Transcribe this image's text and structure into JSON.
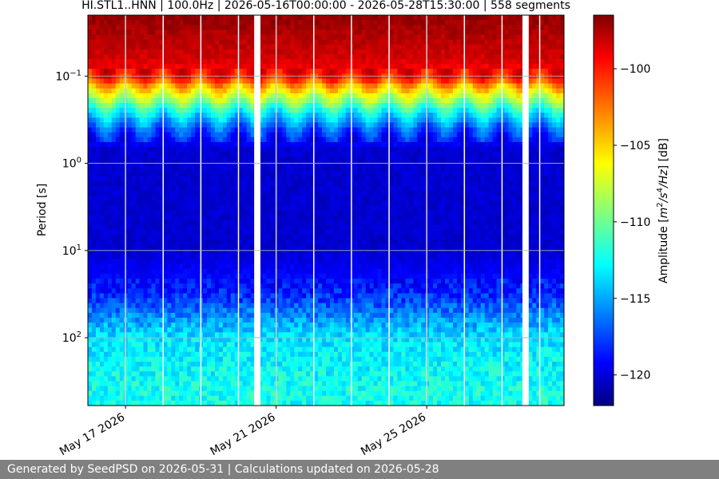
{
  "chart_data": {
    "type": "heatmap",
    "title": "HI.STL1..HNN | 100.0Hz | 2026-05-16T00:00:00 - 2026-05-28T15:30:00 | 558 segments",
    "ylabel": "Period [s]",
    "xlabel": "",
    "y_scale": "log",
    "y_inverted": true,
    "ylim": [
      0.02,
      600
    ],
    "yticks": [
      {
        "value": 0.1,
        "base": "10",
        "exp": "−1"
      },
      {
        "value": 1,
        "base": "10",
        "exp": "0"
      },
      {
        "value": 10,
        "base": "10",
        "exp": "1"
      },
      {
        "value": 100,
        "base": "10",
        "exp": "2"
      }
    ],
    "xlim": [
      "2026-05-16",
      "2026-05-28T15:30:00"
    ],
    "xticks": [
      {
        "date": "2026-05-17",
        "label": "May 17 2026"
      },
      {
        "date": "2026-05-21",
        "label": "May 21 2026"
      },
      {
        "date": "2026-05-25",
        "label": "May 25 2026"
      }
    ],
    "grid": true,
    "data_gaps": [
      {
        "start": "2026-05-20T10:00:00",
        "end": "2026-05-20T14:00:00"
      },
      {
        "start": "2026-05-27T13:00:00",
        "end": "2026-05-27T17:00:00"
      }
    ],
    "day_boundaries": [
      "2026-05-17",
      "2026-05-18",
      "2026-05-19",
      "2026-05-20",
      "2026-05-21",
      "2026-05-22",
      "2026-05-23",
      "2026-05-24",
      "2026-05-25",
      "2026-05-26",
      "2026-05-27",
      "2026-05-28"
    ],
    "amplitude_profile_db": [
      {
        "period": 0.02,
        "db": -97
      },
      {
        "period": 0.06,
        "db": -98.5
      },
      {
        "period": 0.1,
        "db": -100
      },
      {
        "period": 0.13,
        "db": -104
      },
      {
        "period": 0.25,
        "db": -112
      },
      {
        "period": 0.4,
        "db": -116.5
      },
      {
        "period": 0.7,
        "db": -120
      },
      {
        "period": 10,
        "db": -120
      },
      {
        "period": 30,
        "db": -118
      },
      {
        "period": 100,
        "db": -113
      },
      {
        "period": 400,
        "db": -112
      }
    ],
    "colorbar": {
      "label": "Amplitude [m²/s⁴/Hz] [dB]",
      "label_parts": {
        "a": "Amplitude [",
        "b": "m",
        "c": "2",
        "d": "/s",
        "e": "4",
        "f": "/Hz",
        "g": "] [dB]"
      },
      "min": -122,
      "max": -96.5,
      "ticks": [
        -100,
        -105,
        -110,
        -115,
        -120
      ],
      "tick_labels": [
        "−100",
        "−105",
        "−110",
        "−115",
        "−120"
      ],
      "colormap": "jet",
      "colors": [
        "#000080",
        "#0000ff",
        "#00ffff",
        "#ffff00",
        "#ff0000",
        "#800000"
      ]
    }
  },
  "footer": {
    "text": "Generated by SeedPSD on 2026-05-31 | Calculations updated on 2026-05-28"
  }
}
